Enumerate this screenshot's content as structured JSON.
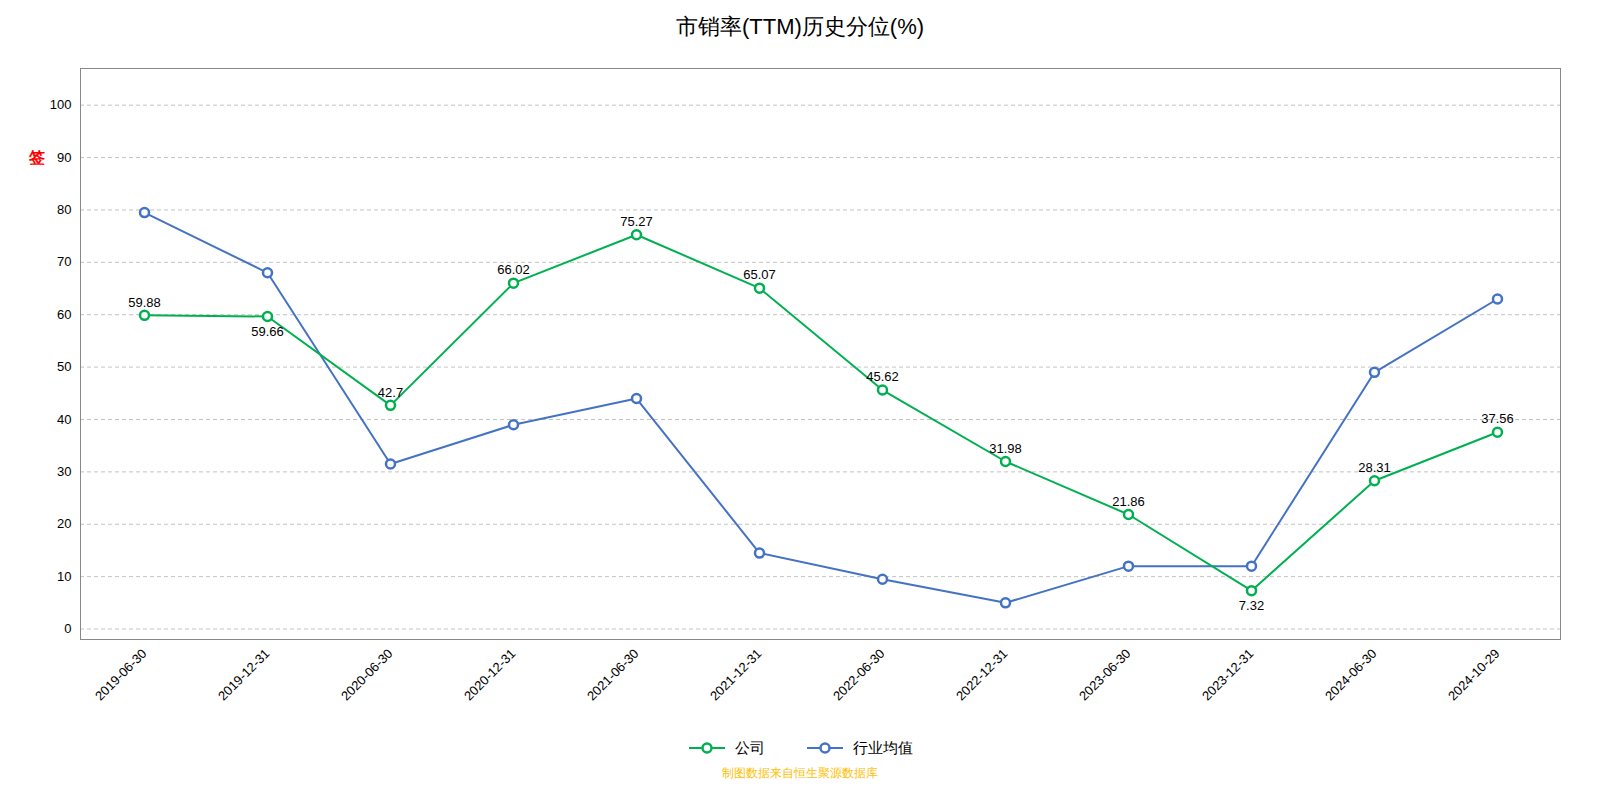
{
  "chart_data": {
    "type": "line",
    "title": "市销率(TTM)历史分位(%)",
    "categories": [
      "2019-06-30",
      "2019-12-31",
      "2020-06-30",
      "2020-12-31",
      "2021-06-30",
      "2021-12-31",
      "2022-06-30",
      "2022-12-31",
      "2023-06-30",
      "2023-12-31",
      "2024-06-30",
      "2024-10-29"
    ],
    "series": [
      {
        "name": "公司",
        "color": "#00b050",
        "marker": "o",
        "line_style": "solid",
        "data_labels": true,
        "values": [
          59.88,
          59.66,
          42.7,
          66.02,
          75.27,
          65.07,
          45.62,
          31.98,
          21.86,
          7.32,
          28.31,
          37.56
        ]
      },
      {
        "name": "行业均值",
        "color": "#4472c4",
        "marker": "o",
        "line_style": "solid",
        "data_labels": false,
        "values": [
          79.5,
          68.0,
          31.5,
          39.0,
          44.0,
          14.5,
          9.5,
          5.0,
          12.0,
          12.0,
          49.0,
          63.0
        ]
      }
    ],
    "ylim": [
      -2,
      107
    ],
    "yticks": [
      0,
      10,
      20,
      30,
      40,
      50,
      60,
      70,
      80,
      90,
      100
    ],
    "grid": true,
    "legend": "bottom",
    "annotations": [
      {
        "text": "签",
        "y": 90,
        "color": "#ff0000"
      }
    ],
    "caption": {
      "text": "制图数据来自恒生聚源数据库",
      "color": "#ffc000"
    }
  }
}
